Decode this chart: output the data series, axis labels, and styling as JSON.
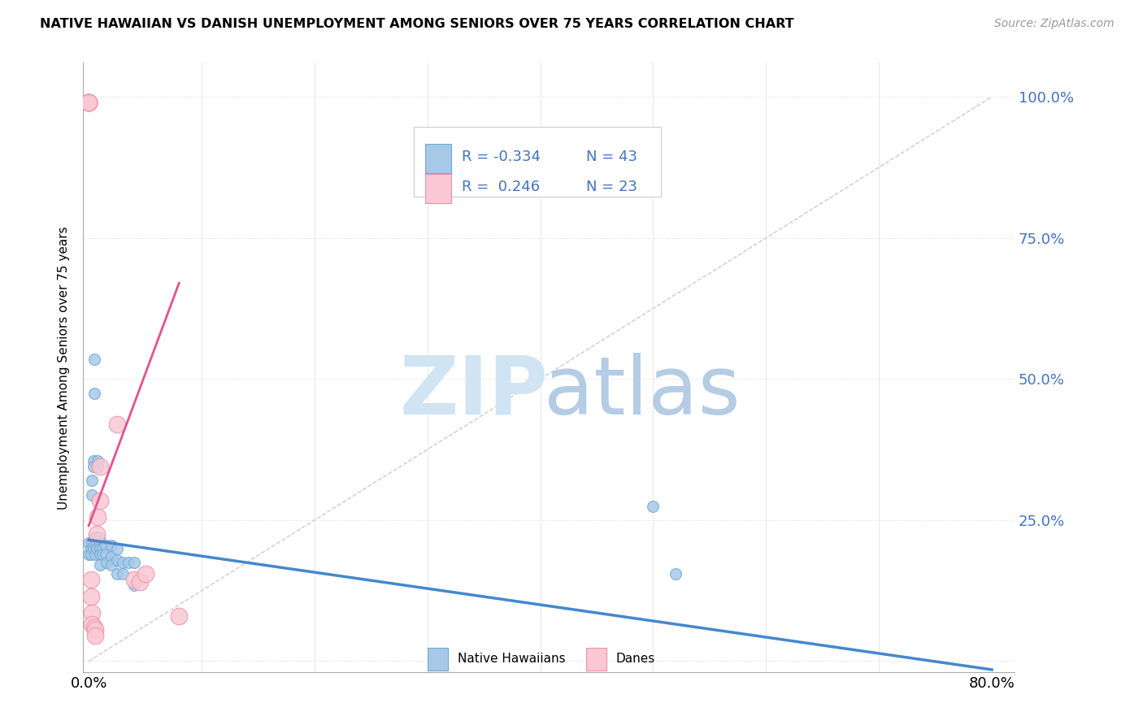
{
  "title": "NATIVE HAWAIIAN VS DANISH UNEMPLOYMENT AMONG SENIORS OVER 75 YEARS CORRELATION CHART",
  "source": "Source: ZipAtlas.com",
  "ylabel": "Unemployment Among Seniors over 75 years",
  "watermark_zip": "ZIP",
  "watermark_atlas": "atlas",
  "blue_color": "#a8c8e8",
  "blue_edge": "#6aaad4",
  "pink_color": "#f9c8d4",
  "pink_edge": "#f090a8",
  "blue_line_color": "#4488cc",
  "pink_line_color": "#e8508c",
  "diag_line_color": "#cccccc",
  "nh_scatter_x": [
    0.0,
    0.0,
    0.002,
    0.002,
    0.003,
    0.003,
    0.003,
    0.004,
    0.004,
    0.004,
    0.005,
    0.005,
    0.005,
    0.005,
    0.006,
    0.006,
    0.007,
    0.007,
    0.008,
    0.008,
    0.009,
    0.01,
    0.01,
    0.01,
    0.01,
    0.012,
    0.012,
    0.015,
    0.015,
    0.016,
    0.02,
    0.02,
    0.02,
    0.025,
    0.025,
    0.025,
    0.03,
    0.03,
    0.035,
    0.04,
    0.04,
    0.5,
    0.52
  ],
  "nh_scatter_y": [
    0.21,
    0.19,
    0.2,
    0.19,
    0.295,
    0.32,
    0.21,
    0.355,
    0.345,
    0.2,
    0.535,
    0.475,
    0.22,
    0.21,
    0.22,
    0.19,
    0.21,
    0.2,
    0.355,
    0.345,
    0.22,
    0.21,
    0.2,
    0.19,
    0.17,
    0.2,
    0.19,
    0.205,
    0.19,
    0.175,
    0.205,
    0.185,
    0.17,
    0.2,
    0.18,
    0.155,
    0.175,
    0.155,
    0.175,
    0.175,
    0.135,
    0.275,
    0.155
  ],
  "danes_scatter_x": [
    0.0,
    0.0,
    0.0,
    0.0,
    0.0,
    0.0,
    0.0,
    0.002,
    0.002,
    0.003,
    0.003,
    0.005,
    0.006,
    0.006,
    0.007,
    0.008,
    0.01,
    0.01,
    0.025,
    0.04,
    0.045,
    0.05,
    0.08
  ],
  "danes_scatter_y": [
    0.99,
    0.99,
    0.99,
    0.99,
    0.99,
    0.99,
    0.99,
    0.145,
    0.115,
    0.085,
    0.065,
    0.06,
    0.055,
    0.045,
    0.225,
    0.255,
    0.285,
    0.345,
    0.42,
    0.145,
    0.14,
    0.155,
    0.08
  ],
  "nh_line_x": [
    0.0,
    0.8
  ],
  "nh_line_y": [
    0.215,
    -0.015
  ],
  "danes_line_x": [
    0.0,
    0.08
  ],
  "danes_line_y": [
    0.24,
    0.67
  ],
  "diag_line_x": [
    0.0,
    0.8
  ],
  "diag_line_y": [
    0.0,
    1.0
  ],
  "xlim": [
    -0.005,
    0.82
  ],
  "ylim": [
    -0.02,
    1.06
  ],
  "ytick_vals": [
    0.0,
    0.25,
    0.5,
    0.75,
    1.0
  ],
  "ytick_labels_right": [
    "",
    "25.0%",
    "50.0%",
    "75.0%",
    "100.0%"
  ],
  "xtick_vals": [
    0.0,
    0.8
  ],
  "xtick_labels": [
    "0.0%",
    "80.0%"
  ],
  "background_color": "#ffffff",
  "scatter_size_nh": 100,
  "scatter_size_danes": 220,
  "legend_r_blue": "R = -0.334",
  "legend_n_blue": "N = 43",
  "legend_r_pink": "R =  0.246",
  "legend_n_pink": "N = 23",
  "legend_bot_1": "Native Hawaiians",
  "legend_bot_2": "Danes",
  "grid_color": "#dddddd",
  "minor_vert_x": [
    0.1,
    0.2,
    0.3,
    0.4,
    0.5,
    0.6,
    0.7
  ]
}
